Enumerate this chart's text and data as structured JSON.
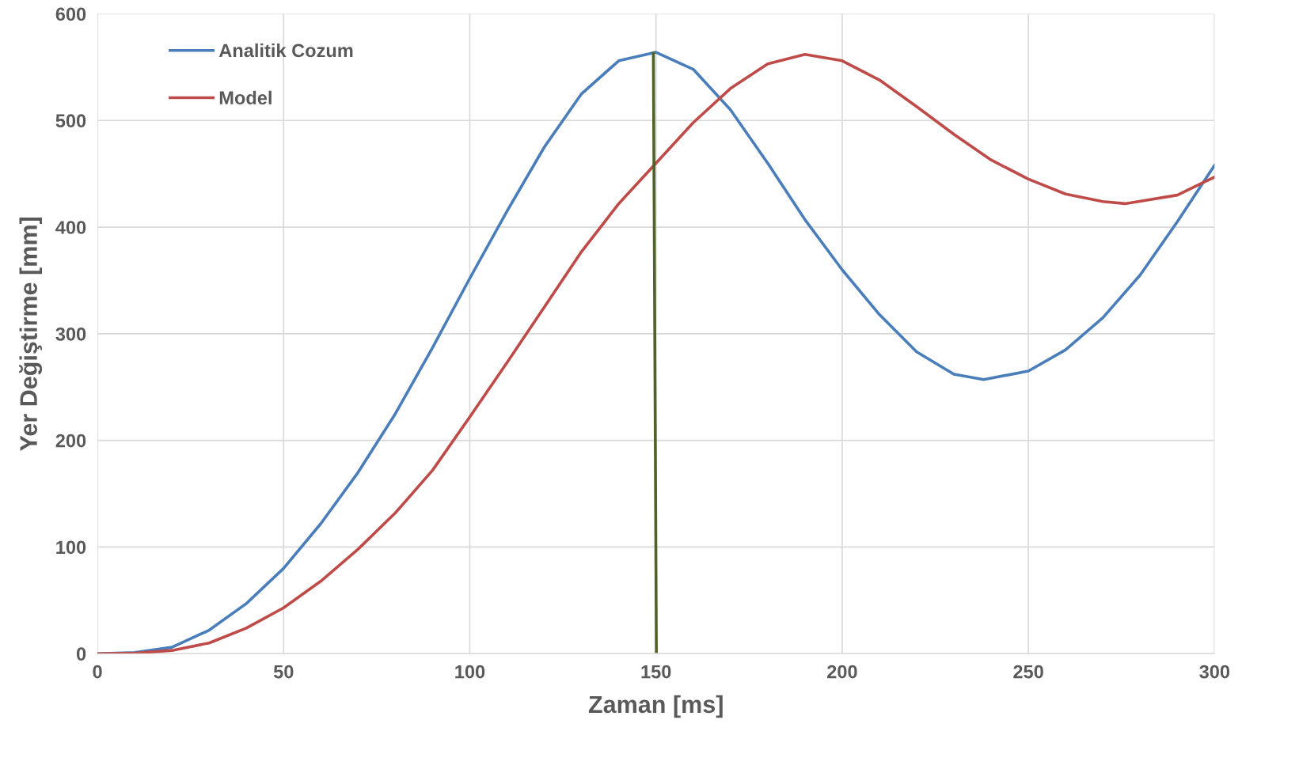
{
  "chart_data": {
    "type": "line",
    "xlabel": "Zaman [ms]",
    "ylabel": "Yer Değiştirme [mm]",
    "xlim": [
      0,
      300
    ],
    "xticks": [
      0,
      50,
      100,
      150,
      200,
      250,
      300
    ],
    "ylim": [
      0,
      600
    ],
    "yticks": [
      0,
      100,
      200,
      300,
      400,
      500,
      600
    ],
    "grid": true,
    "legend": "top left",
    "marker": "none",
    "line_style": "solid",
    "series": [
      {
        "name": "Analitik Cozum",
        "color": "#4a7ebb",
        "x": [
          0,
          10,
          20,
          30,
          40,
          50,
          60,
          70,
          80,
          90,
          100,
          110,
          120,
          130,
          140,
          150,
          160,
          170,
          180,
          190,
          200,
          210,
          220,
          230,
          238,
          250,
          260,
          270,
          280,
          290,
          300
        ],
        "values": [
          0,
          1,
          6,
          22,
          47,
          80,
          122,
          170,
          225,
          287,
          352,
          415,
          475,
          525,
          556,
          564,
          548,
          510,
          460,
          407,
          360,
          318,
          283,
          262,
          257,
          265,
          285,
          315,
          355,
          405,
          458
        ]
      },
      {
        "name": "Model",
        "color": "#be4b48",
        "x": [
          0,
          10,
          20,
          30,
          40,
          50,
          60,
          70,
          80,
          90,
          100,
          110,
          120,
          130,
          140,
          150,
          160,
          170,
          180,
          190,
          200,
          210,
          220,
          230,
          240,
          250,
          260,
          270,
          276,
          290,
          300
        ],
        "values": [
          0,
          0.5,
          3,
          10,
          24,
          43,
          68,
          98,
          132,
          172,
          222,
          273,
          325,
          377,
          422,
          460,
          498,
          530,
          553,
          562,
          556,
          538,
          513,
          487,
          463,
          445,
          431,
          424,
          422,
          430,
          447
        ]
      },
      {
        "color": "#4f6228",
        "x": [
          149.3,
          150.1
        ],
        "values": [
          563,
          2
        ]
      }
    ]
  }
}
